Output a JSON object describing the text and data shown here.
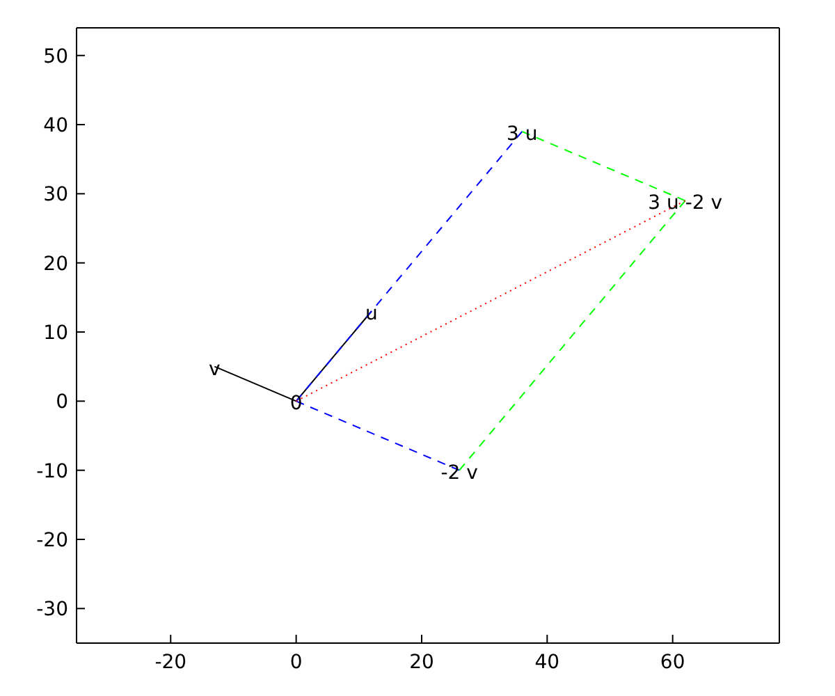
{
  "chart_data": {
    "type": "line",
    "series": [
      {
        "color": "#000000",
        "line_style": "solid",
        "x": [
          0,
          12
        ],
        "values": [
          0,
          13
        ]
      },
      {
        "color": "#000000",
        "line_style": "solid",
        "x": [
          0,
          -13
        ],
        "values": [
          0,
          5
        ]
      },
      {
        "color": "#0000ff",
        "line_style": "dashed",
        "x": [
          0,
          36
        ],
        "values": [
          0,
          39
        ]
      },
      {
        "color": "#0000ff",
        "line_style": "dashed",
        "x": [
          0,
          26
        ],
        "values": [
          0,
          -10
        ]
      },
      {
        "color": "#00ff00",
        "line_style": "dashed",
        "x": [
          36,
          62
        ],
        "values": [
          39,
          29
        ]
      },
      {
        "color": "#00ff00",
        "line_style": "dashed",
        "x": [
          26,
          62
        ],
        "values": [
          -10,
          29
        ]
      },
      {
        "color": "#ff0000",
        "line_style": "dotted",
        "x": [
          0,
          62
        ],
        "values": [
          0,
          29
        ]
      }
    ],
    "annotations": [
      {
        "text": "0",
        "x": 0,
        "y": 0
      },
      {
        "text": "u",
        "x": 12,
        "y": 13
      },
      {
        "text": "3 u",
        "x": 36,
        "y": 39
      },
      {
        "text": "3 u -2 v",
        "x": 62,
        "y": 29
      },
      {
        "text": "-2 v",
        "x": 26,
        "y": -10
      },
      {
        "text": "v",
        "x": -13,
        "y": 5
      }
    ],
    "xlim": [
      -35,
      77
    ],
    "xticks": [
      -20,
      0,
      20,
      40,
      60
    ],
    "ylim": [
      -35,
      54
    ],
    "yticks": [
      -30,
      -20,
      -10,
      0,
      10,
      20,
      30,
      40,
      50
    ],
    "marker": "none",
    "grid": false
  }
}
